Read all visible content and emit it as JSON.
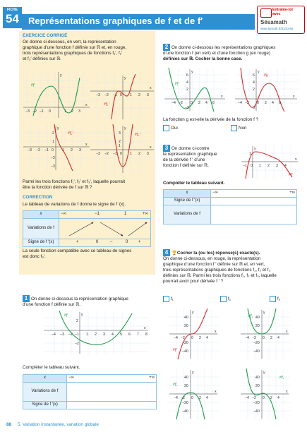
{
  "header": {
    "fiche_label": "FICHE",
    "fiche_number": "54",
    "title": "Représentations graphiques de f et de f′",
    "sesamath": {
      "line1": "Entraîne-toi",
      "line2": "avec",
      "logo": "Sésamath",
      "url": "www.tamath.fr/3210-65"
    }
  },
  "exercise_corrige": {
    "heading": "EXERCICE CORRIGÉ",
    "lines": [
      "On donne ci-dessous, en vert, la représentation",
      "graphique d’une fonction f définie sur ℝ et, en rouge,",
      "trois représentations graphiques de fonctions f₁′, f₂′",
      "et f₃′ définies sur ℝ."
    ],
    "question": [
      "Parmi les trois fonctions f₁′, f₂′ et f₃′, laquelle pourrait",
      "être la fonction dérivée de f sur ℝ ?"
    ],
    "correction_heading": "CORRECTION",
    "correction_line": "Le tableau de variations de f donne le signe de f ′(x).",
    "table": {
      "x_label": "x",
      "x_values": [
        "−∞",
        "−1",
        "1",
        "+∞"
      ],
      "row1_label": "Variations de f",
      "row2_label": "Signe de f ′(x)",
      "signs": [
        "+",
        "0",
        "−",
        "0",
        "+"
      ]
    },
    "conclusion": [
      "La seule fonction compatible avec ce tableau de signes",
      "est donc f₃′."
    ]
  },
  "exercise1": {
    "number": "1",
    "lines": [
      "On donne ci-dessous la représentation graphique",
      "d’une fonction f définie sur ℝ."
    ],
    "instruction": "Compléter le tableau suivant.",
    "table": {
      "x_label": "x",
      "x_values": [
        "−∞",
        "+∞"
      ],
      "row1_label": "Variations de f",
      "row2_label": "Signe de f ′(x)"
    }
  },
  "exercise2": {
    "number": "2",
    "lines": [
      "On donne ci-dessous les représentations graphiques",
      "d’une fonction f (en vert) et d’une fonction g (en rouge)",
      "définies sur ℝ. Cocher la bonne case."
    ],
    "question": "La fonction g est-elle la dérivée de la fonction f ?",
    "options": [
      "Oui",
      "Non"
    ]
  },
  "exercise3": {
    "number": "3",
    "lines": [
      "On donne ci-contre",
      "la représentation graphique",
      "de la dérivée f ′ d’une",
      "fonction f définie sur ℝ."
    ],
    "instruction": "Compléter le tableau suivant.",
    "table": {
      "x_label": "x",
      "x_values": [
        "−∞",
        "+∞"
      ],
      "row1_label": "Signe de f ′(x)",
      "row2_label": "Variations de f"
    }
  },
  "exercise4": {
    "number": "4",
    "lines": [
      "Cocher la (ou les) réponse(s) exacte(s).",
      "On donne ci-dessous, en rouge, la représentation",
      "graphique d’une fonction f ′ définie sur ℝ et, en vert,",
      "trois représentations graphiques de fonctions f₁, f₂ et f₃",
      "définies sur ℝ. Parmi les trois fonctions f₁, f₂ et f₃, laquelle",
      "pourrait avoir pour dérivée f ′ ?"
    ],
    "options": [
      "f₁",
      "f₂",
      "f₃"
    ]
  },
  "footer": {
    "page": "88",
    "chapter": "5. Variation instantanée, variation globale"
  },
  "colors": {
    "accent": "#2e8fd1",
    "green": "#1f9a4b",
    "red": "#d62828",
    "panel": "#fdf0cf"
  }
}
